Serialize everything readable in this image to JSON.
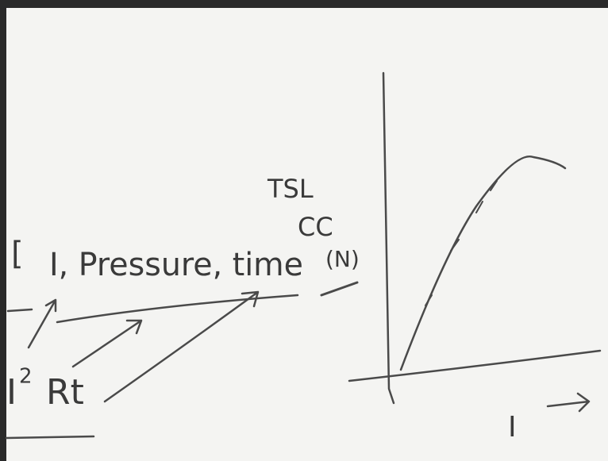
{
  "left_notes": {
    "parameters": "I, Pressure, time",
    "heat": {
      "base": "I",
      "exponent": "2",
      "rest": "Rt"
    }
  },
  "labels": [
    "TSL",
    "CC",
    "(N)"
  ],
  "graph": {
    "x_label": "I"
  }
}
